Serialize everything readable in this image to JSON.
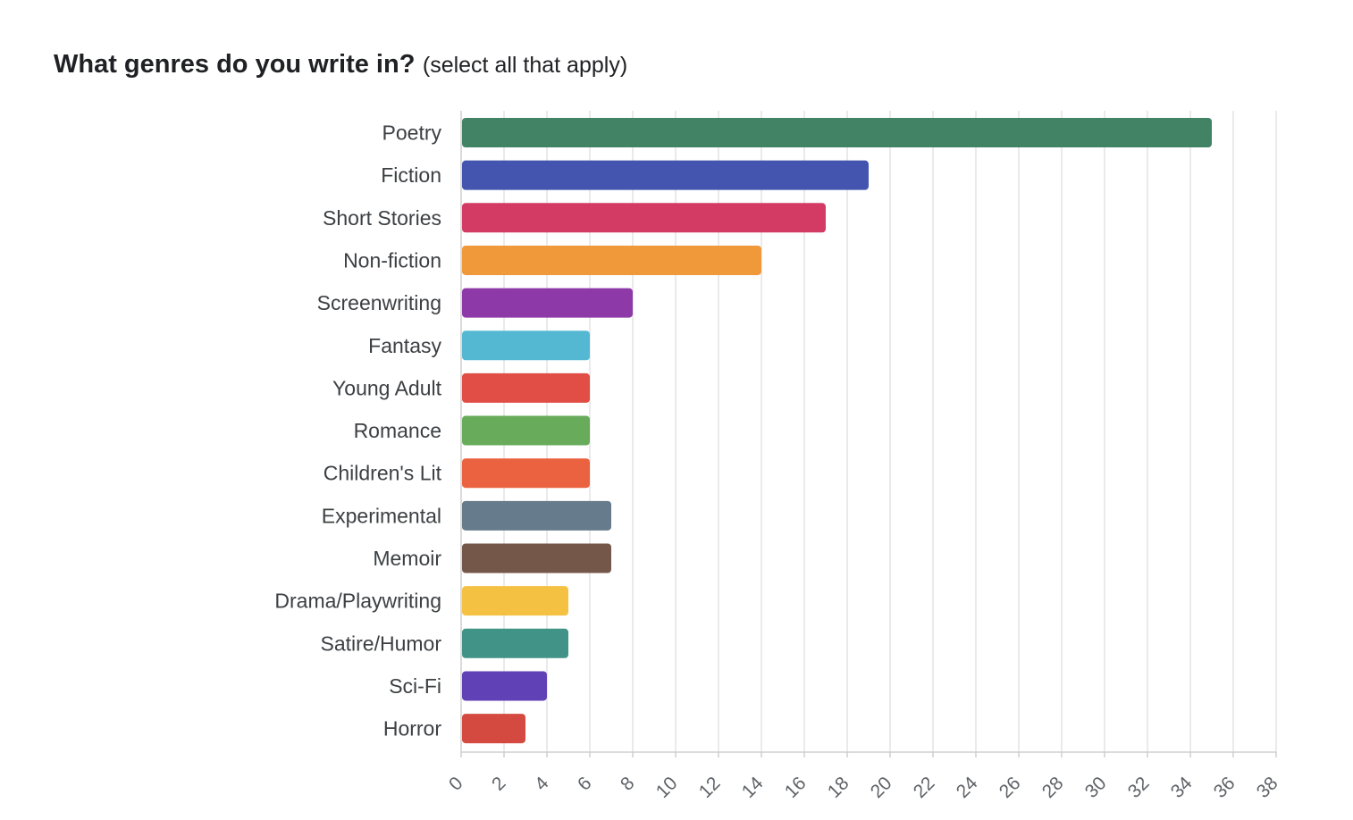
{
  "title": {
    "question": "What genres do you write in?",
    "subtitle": "(select all that apply)"
  },
  "chart_data": {
    "type": "bar",
    "orientation": "horizontal",
    "categories": [
      "Poetry",
      "Fiction",
      "Short Stories",
      "Non-fiction",
      "Screenwriting",
      "Fantasy",
      "Young Adult",
      "Romance",
      "Children's Lit",
      "Experimental",
      "Memoir",
      "Drama/Playwriting",
      "Satire/Humor",
      "Sci-Fi",
      "Horror"
    ],
    "values": [
      35,
      19,
      17,
      14,
      8,
      6,
      6,
      6,
      6,
      7,
      7,
      5,
      5,
      4,
      3
    ],
    "colors": [
      "#428365",
      "#4355ae",
      "#d33b64",
      "#ef993b",
      "#8d39a8",
      "#55b8d3",
      "#e04e45",
      "#67ab5b",
      "#eb6240",
      "#667b8b",
      "#75574a",
      "#f5c143",
      "#409386",
      "#6142b6",
      "#d44a40"
    ],
    "xlim": [
      0,
      38
    ],
    "xticks": [
      "0",
      "2",
      "4",
      "6",
      "8",
      "10",
      "12",
      "14",
      "16",
      "18",
      "20",
      "22",
      "24",
      "26",
      "28",
      "30",
      "32",
      "34",
      "36",
      "38"
    ],
    "grid": true
  }
}
